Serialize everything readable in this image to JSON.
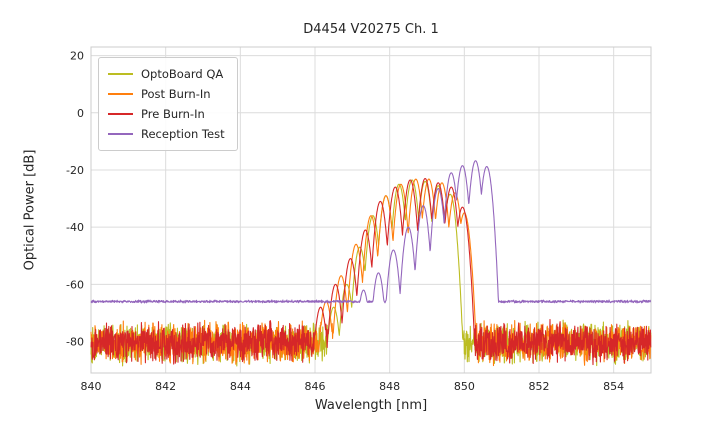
{
  "chart_data": {
    "type": "line",
    "title": "D4454 V20275 Ch. 1",
    "xlabel": "Wavelength [nm]",
    "ylabel": "Optical Power [dB]",
    "xlim": [
      840,
      855
    ],
    "ylim": [
      -91,
      23
    ],
    "xticks": [
      840,
      842,
      844,
      846,
      848,
      850,
      852,
      854
    ],
    "yticks": [
      20,
      0,
      -20,
      -40,
      -60,
      -80
    ],
    "grid": true,
    "legend_position": "upper left",
    "sample_step": 0.009,
    "style": {
      "background": "#ffffff",
      "grid_color": "#dcdcdc",
      "frame_color": "#cccccc",
      "text_color": "#262626"
    },
    "series": [
      {
        "name": "OptoBoard QA",
        "color": "#bcbd22",
        "seed": 7,
        "noise_floor": -80.5,
        "noise_amplitude": 8.2,
        "mode_sharpness": 450,
        "modes": [
          [
            846.5,
            -68
          ],
          [
            846.85,
            -60
          ],
          [
            847.2,
            -47
          ],
          [
            847.55,
            -36
          ],
          [
            847.9,
            -29
          ],
          [
            848.25,
            -25
          ],
          [
            848.6,
            -23.5
          ],
          [
            848.95,
            -24
          ],
          [
            849.3,
            -25.5
          ],
          [
            849.62,
            -28.5
          ]
        ]
      },
      {
        "name": "Post Burn-In",
        "color": "#ff7f0e",
        "seed": 104729,
        "noise_floor": -80.5,
        "noise_amplitude": 8.2,
        "mode_sharpness": 450,
        "modes": [
          [
            846.3,
            -66
          ],
          [
            846.7,
            -57
          ],
          [
            847.1,
            -46
          ],
          [
            847.5,
            -36
          ],
          [
            847.9,
            -29
          ],
          [
            848.3,
            -25
          ],
          [
            848.7,
            -23.2
          ],
          [
            849.05,
            -23.2
          ],
          [
            849.4,
            -24.5
          ],
          [
            849.75,
            -28
          ],
          [
            850.0,
            -35
          ]
        ]
      },
      {
        "name": "Pre Burn-In",
        "color": "#d62728",
        "seed": 31337,
        "noise_floor": -80.5,
        "noise_amplitude": 8.2,
        "mode_sharpness": 450,
        "modes": [
          [
            846.15,
            -68
          ],
          [
            846.55,
            -60
          ],
          [
            846.95,
            -51
          ],
          [
            847.35,
            -41
          ],
          [
            847.75,
            -31
          ],
          [
            848.15,
            -26
          ],
          [
            848.55,
            -23.5
          ],
          [
            848.95,
            -23
          ],
          [
            849.3,
            -24.5
          ],
          [
            849.65,
            -26
          ],
          [
            849.95,
            -33
          ]
        ]
      },
      {
        "name": "Reception Test",
        "color": "#9467bd",
        "seed": 999331,
        "noise_floor": -66,
        "noise_amplitude": 0.55,
        "mode_sharpness": 480,
        "modes": [
          [
            847.3,
            -62
          ],
          [
            847.7,
            -56
          ],
          [
            848.1,
            -48
          ],
          [
            848.5,
            -40
          ],
          [
            848.9,
            -32.5
          ],
          [
            849.3,
            -26.5
          ],
          [
            849.65,
            -21
          ],
          [
            849.95,
            -18.5
          ],
          [
            850.3,
            -16.8
          ],
          [
            850.6,
            -18.8
          ]
        ]
      }
    ]
  }
}
